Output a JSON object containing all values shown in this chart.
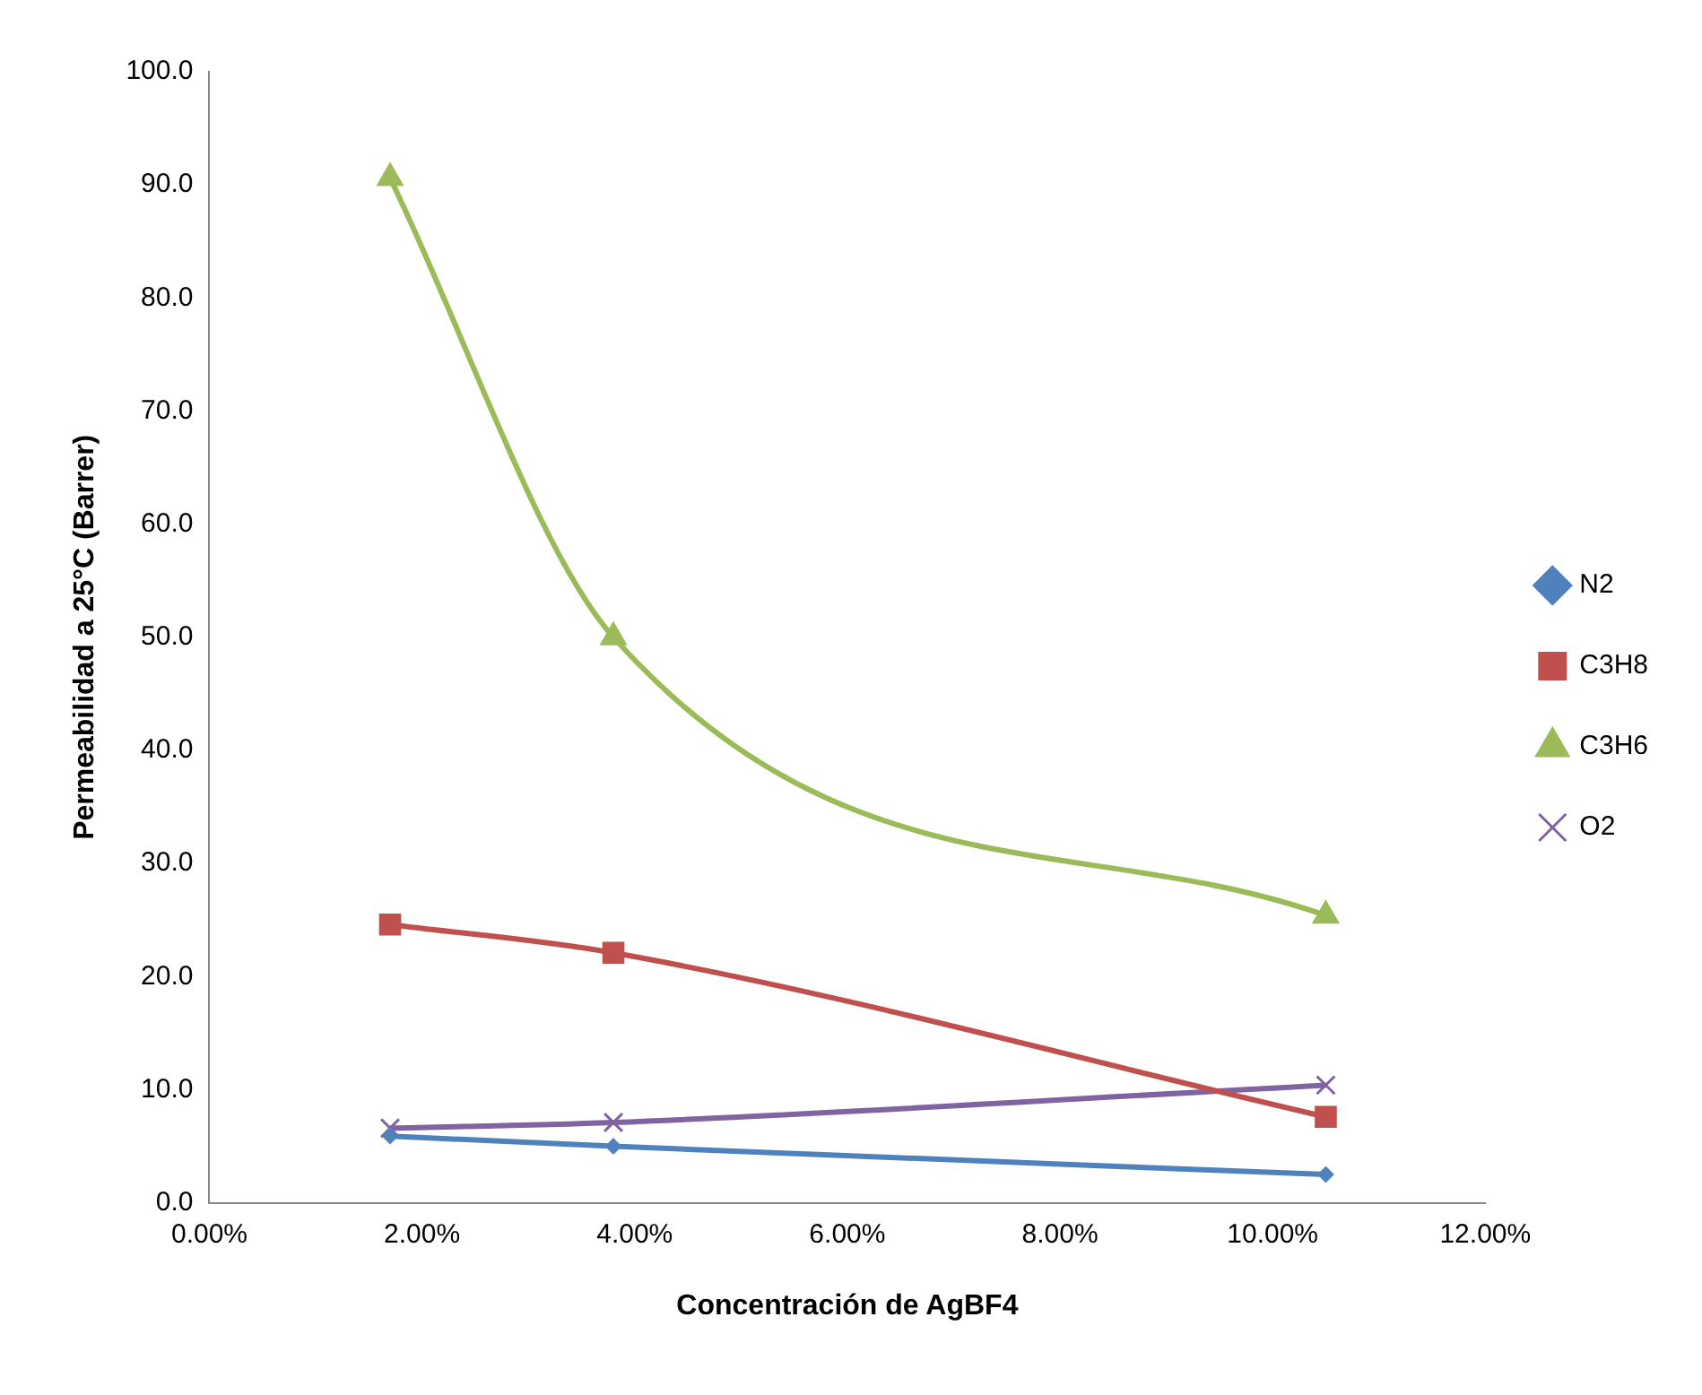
{
  "chart_data": {
    "type": "line",
    "xlabel": "Concentración de AgBF4",
    "ylabel": "Permeabilidad a 25°C (Barrer)",
    "x": [
      0.017,
      0.038,
      0.105
    ],
    "series": [
      {
        "name": "N2",
        "color": "#4f81bd",
        "marker": "diamond",
        "values": [
          5.9,
          5.0,
          2.5
        ]
      },
      {
        "name": "C3H8",
        "color": "#c0504d",
        "marker": "square",
        "values": [
          24.6,
          22.1,
          7.6
        ]
      },
      {
        "name": "C3H6",
        "color": "#9bbb59",
        "marker": "triangle",
        "values": [
          90.6,
          50.0,
          25.4
        ]
      },
      {
        "name": "O2",
        "color": "#8064a2",
        "marker": "cross",
        "values": [
          6.6,
          7.1,
          10.4
        ]
      }
    ],
    "xlim": [
      0,
      0.12
    ],
    "xticks": [
      {
        "value": 0,
        "label": "0.00%"
      },
      {
        "value": 0.02,
        "label": "2.00%"
      },
      {
        "value": 0.04,
        "label": "4.00%"
      },
      {
        "value": 0.06,
        "label": "6.00%"
      },
      {
        "value": 0.08,
        "label": "8.00%"
      },
      {
        "value": 0.1,
        "label": "10.00%"
      },
      {
        "value": 0.12,
        "label": "12.00%"
      }
    ],
    "ylim": [
      0,
      100
    ],
    "yticks": [
      {
        "value": 0,
        "label": "0.0"
      },
      {
        "value": 10,
        "label": "10.0"
      },
      {
        "value": 20,
        "label": "20.0"
      },
      {
        "value": 30,
        "label": "30.0"
      },
      {
        "value": 40,
        "label": "40.0"
      },
      {
        "value": 50,
        "label": "50.0"
      },
      {
        "value": 60,
        "label": "60.0"
      },
      {
        "value": 70,
        "label": "70.0"
      },
      {
        "value": 80,
        "label": "80.0"
      },
      {
        "value": 90,
        "label": "90.0"
      },
      {
        "value": 100,
        "label": "100.0"
      }
    ],
    "grid": false,
    "legend": "right"
  }
}
